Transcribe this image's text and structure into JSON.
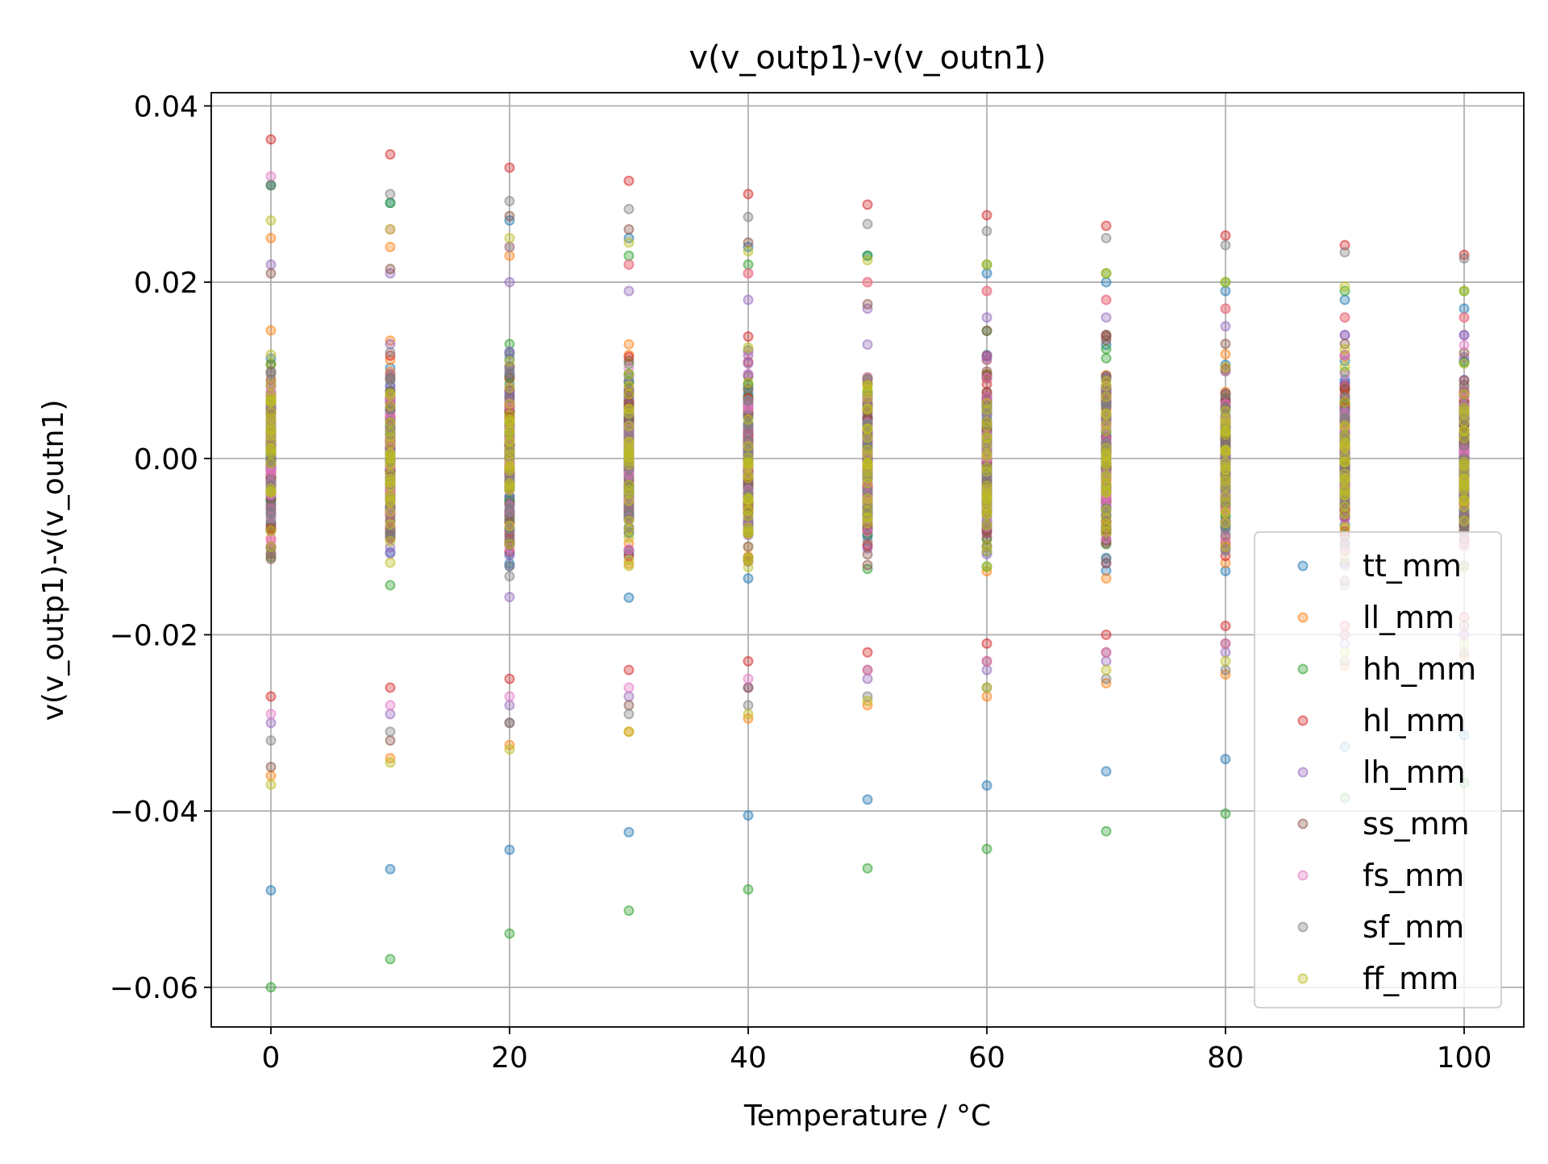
{
  "chart_data": {
    "type": "scatter",
    "title": "v(v_outp1)-v(v_outn1)",
    "xlabel": "Temperature / °C",
    "ylabel": "v(v_outp1)-v(v_outn1)",
    "xlim": [
      -5,
      105
    ],
    "ylim": [
      -0.0645,
      0.0415
    ],
    "x_ticks": [
      0,
      20,
      40,
      60,
      80,
      100
    ],
    "x_tick_labels": [
      "0",
      "20",
      "40",
      "60",
      "80",
      "100"
    ],
    "y_ticks": [
      0.04,
      0.02,
      0.0,
      -0.02,
      -0.04,
      -0.06
    ],
    "y_tick_labels": [
      "0.04",
      "0.02",
      "0.00",
      "−0.02",
      "−0.04",
      "−0.06"
    ],
    "grid": true,
    "legend_position": "lower-right",
    "x": [
      0,
      10,
      20,
      30,
      40,
      50,
      60,
      70,
      80,
      90,
      100
    ],
    "series": [
      {
        "name": "tt_mm",
        "color": "#1f77b4",
        "min": [
          -0.049,
          -0.0466,
          -0.0444,
          -0.0424,
          -0.0405,
          -0.0387,
          -0.0371,
          -0.0355,
          -0.0341,
          -0.0327,
          -0.0314
        ],
        "max": [
          0.031,
          0.029,
          0.027,
          0.025,
          0.024,
          0.023,
          0.021,
          0.02,
          0.019,
          0.018,
          0.017
        ]
      },
      {
        "name": "ll_mm",
        "color": "#ff7f0e",
        "min": [
          -0.036,
          -0.034,
          -0.0325,
          -0.031,
          -0.0295,
          -0.028,
          -0.027,
          -0.0255,
          -0.0245,
          -0.0235,
          -0.0225
        ],
        "max": [
          0.025,
          0.024,
          0.023,
          0.022,
          0.021,
          0.02,
          0.019,
          0.018,
          0.017,
          0.016,
          0.016
        ]
      },
      {
        "name": "hh_mm",
        "color": "#2ca02c",
        "min": [
          -0.06,
          -0.0568,
          -0.0539,
          -0.0513,
          -0.0489,
          -0.0465,
          -0.0443,
          -0.0423,
          -0.0403,
          -0.0385,
          -0.0368
        ],
        "max": [
          0.031,
          0.029,
          0.024,
          0.023,
          0.022,
          0.023,
          0.022,
          0.021,
          0.02,
          0.019,
          0.019
        ]
      },
      {
        "name": "hl_mm",
        "color": "#d62728",
        "min": [
          -0.027,
          -0.026,
          -0.025,
          -0.024,
          -0.023,
          -0.022,
          -0.021,
          -0.02,
          -0.019,
          -0.019,
          -0.018
        ],
        "max": [
          0.0362,
          0.0345,
          0.033,
          0.0315,
          0.03,
          0.0288,
          0.0276,
          0.0264,
          0.0253,
          0.0242,
          0.0231
        ]
      },
      {
        "name": "lh_mm",
        "color": "#9467bd",
        "min": [
          -0.03,
          -0.029,
          -0.028,
          -0.027,
          -0.026,
          -0.025,
          -0.024,
          -0.023,
          -0.022,
          -0.021,
          -0.02
        ],
        "max": [
          0.022,
          0.021,
          0.02,
          0.019,
          0.018,
          0.017,
          0.016,
          0.016,
          0.015,
          0.014,
          0.014
        ]
      },
      {
        "name": "ss_mm",
        "color": "#8c564b",
        "min": [
          -0.035,
          -0.032,
          -0.03,
          -0.028,
          -0.026,
          -0.024,
          -0.023,
          -0.022,
          -0.021,
          -0.02,
          -0.019
        ],
        "max": [
          0.021,
          0.0215,
          0.0275,
          0.026,
          0.0245,
          0.0175,
          0.0145,
          0.014,
          0.013,
          0.013,
          0.012
        ]
      },
      {
        "name": "fs_mm",
        "color": "#e377c2",
        "min": [
          -0.029,
          -0.028,
          -0.027,
          -0.026,
          -0.025,
          -0.024,
          -0.023,
          -0.022,
          -0.021,
          -0.02,
          -0.02
        ],
        "max": [
          0.032,
          0.026,
          0.024,
          0.022,
          0.021,
          0.02,
          0.019,
          0.018,
          0.017,
          0.016,
          0.016
        ]
      },
      {
        "name": "sf_mm",
        "color": "#7f7f7f",
        "min": [
          -0.032,
          -0.031,
          -0.03,
          -0.029,
          -0.028,
          -0.027,
          -0.026,
          -0.025,
          -0.024,
          -0.023,
          -0.022
        ],
        "max": [
          0.031,
          0.03,
          0.0292,
          0.0283,
          0.0274,
          0.0266,
          0.0258,
          0.025,
          0.0242,
          0.0234,
          0.0227
        ]
      },
      {
        "name": "ff_mm",
        "color": "#bcbd22",
        "min": [
          -0.037,
          -0.0345,
          -0.033,
          -0.031,
          -0.029,
          -0.0275,
          -0.026,
          -0.024,
          -0.023,
          -0.022,
          -0.021
        ],
        "max": [
          0.027,
          0.026,
          0.025,
          0.0245,
          0.0235,
          0.0225,
          0.022,
          0.021,
          0.02,
          0.0195,
          0.019
        ]
      }
    ]
  }
}
